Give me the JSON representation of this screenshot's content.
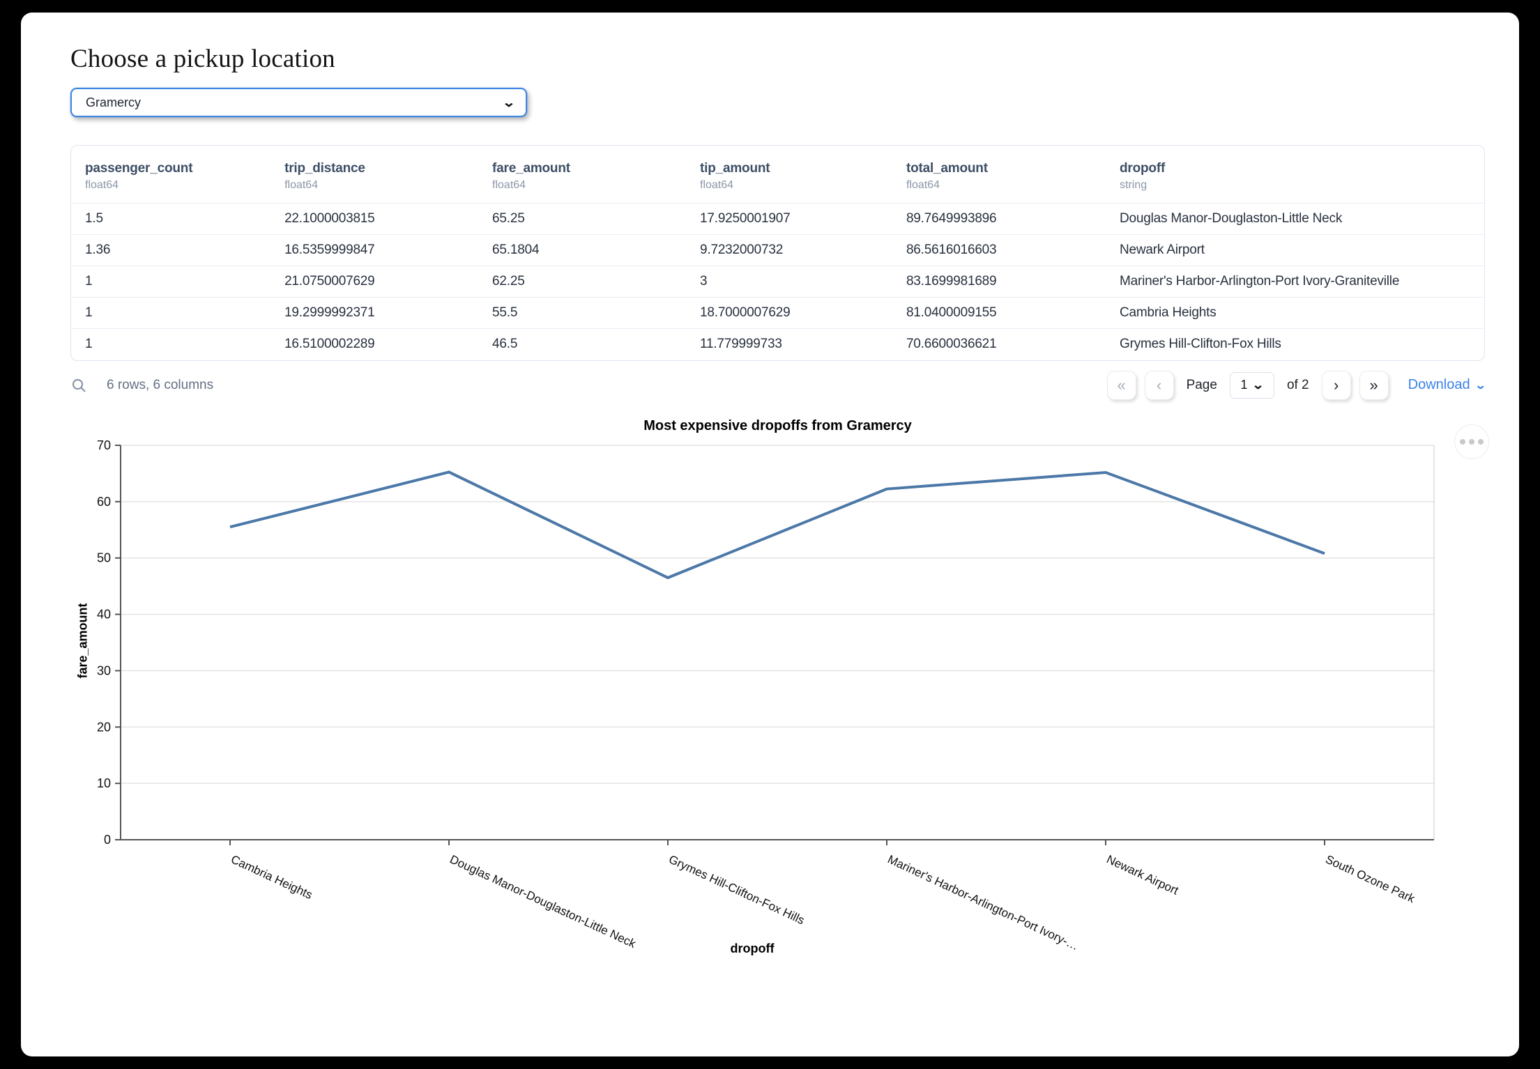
{
  "page": {
    "title": "Choose a pickup location"
  },
  "pickup_select": {
    "value": "Gramercy",
    "chevron_icon": "⌄"
  },
  "table": {
    "columns": [
      {
        "name": "passenger_count",
        "type": "float64"
      },
      {
        "name": "trip_distance",
        "type": "float64"
      },
      {
        "name": "fare_amount",
        "type": "float64"
      },
      {
        "name": "tip_amount",
        "type": "float64"
      },
      {
        "name": "total_amount",
        "type": "float64"
      },
      {
        "name": "dropoff",
        "type": "string"
      }
    ],
    "rows": [
      [
        "1.5",
        "22.1000003815",
        "65.25",
        "17.9250001907",
        "89.7649993896",
        "Douglas Manor-Douglaston-Little Neck"
      ],
      [
        "1.36",
        "16.5359999847",
        "65.1804",
        "9.7232000732",
        "86.5616016603",
        "Newark Airport"
      ],
      [
        "1",
        "21.0750007629",
        "62.25",
        "3",
        "83.1699981689",
        "Mariner's Harbor-Arlington-Port Ivory-Graniteville"
      ],
      [
        "1",
        "19.2999992371",
        "55.5",
        "18.7000007629",
        "81.0400009155",
        "Cambria Heights"
      ],
      [
        "1",
        "16.5100002289",
        "46.5",
        "11.779999733",
        "70.6600036621",
        "Grymes Hill-Clifton-Fox Hills"
      ]
    ],
    "footer": {
      "summary": "6 rows, 6 columns",
      "page_label": "Page",
      "page_value": "1",
      "of_label": "of 2",
      "download_label": "Download",
      "first_icon": "«",
      "prev_icon": "‹",
      "next_icon": "›",
      "last_icon": "»",
      "chevron_icon": "⌄"
    }
  },
  "chart_data": {
    "type": "line",
    "title": "Most expensive dropoffs from Gramercy",
    "xlabel": "dropoff",
    "ylabel": "fare_amount",
    "categories": [
      "Cambria Heights",
      "Douglas Manor-Douglaston-Little Neck",
      "Grymes Hill-Clifton-Fox Hills",
      "Mariner's Harbor-Arlington-Port Ivory-Graniteville",
      "Newark Airport",
      "South Ozone Park"
    ],
    "tick_labels": [
      "Cambria Heights",
      "Douglas Manor-Douglaston-Little Neck",
      "Grymes Hill-Clifton-Fox Hills",
      "Mariner's Harbor-Arlington-Port Ivory-…",
      "Newark Airport",
      "South Ozone Park"
    ],
    "values": [
      55.5,
      65.25,
      46.5,
      62.25,
      65.1804,
      50.8
    ],
    "ylim": [
      0,
      70
    ],
    "yticks": [
      0,
      10,
      20,
      30,
      40,
      50,
      60,
      70
    ],
    "grid": true,
    "legend": "none",
    "line_color": "#4c78a8"
  },
  "colors": {
    "accent_blue": "#3e86e4",
    "link_blue": "#3c82e8",
    "header_text": "#3d4e66",
    "muted_text": "#8b97a8",
    "line": "#4c78a8"
  }
}
